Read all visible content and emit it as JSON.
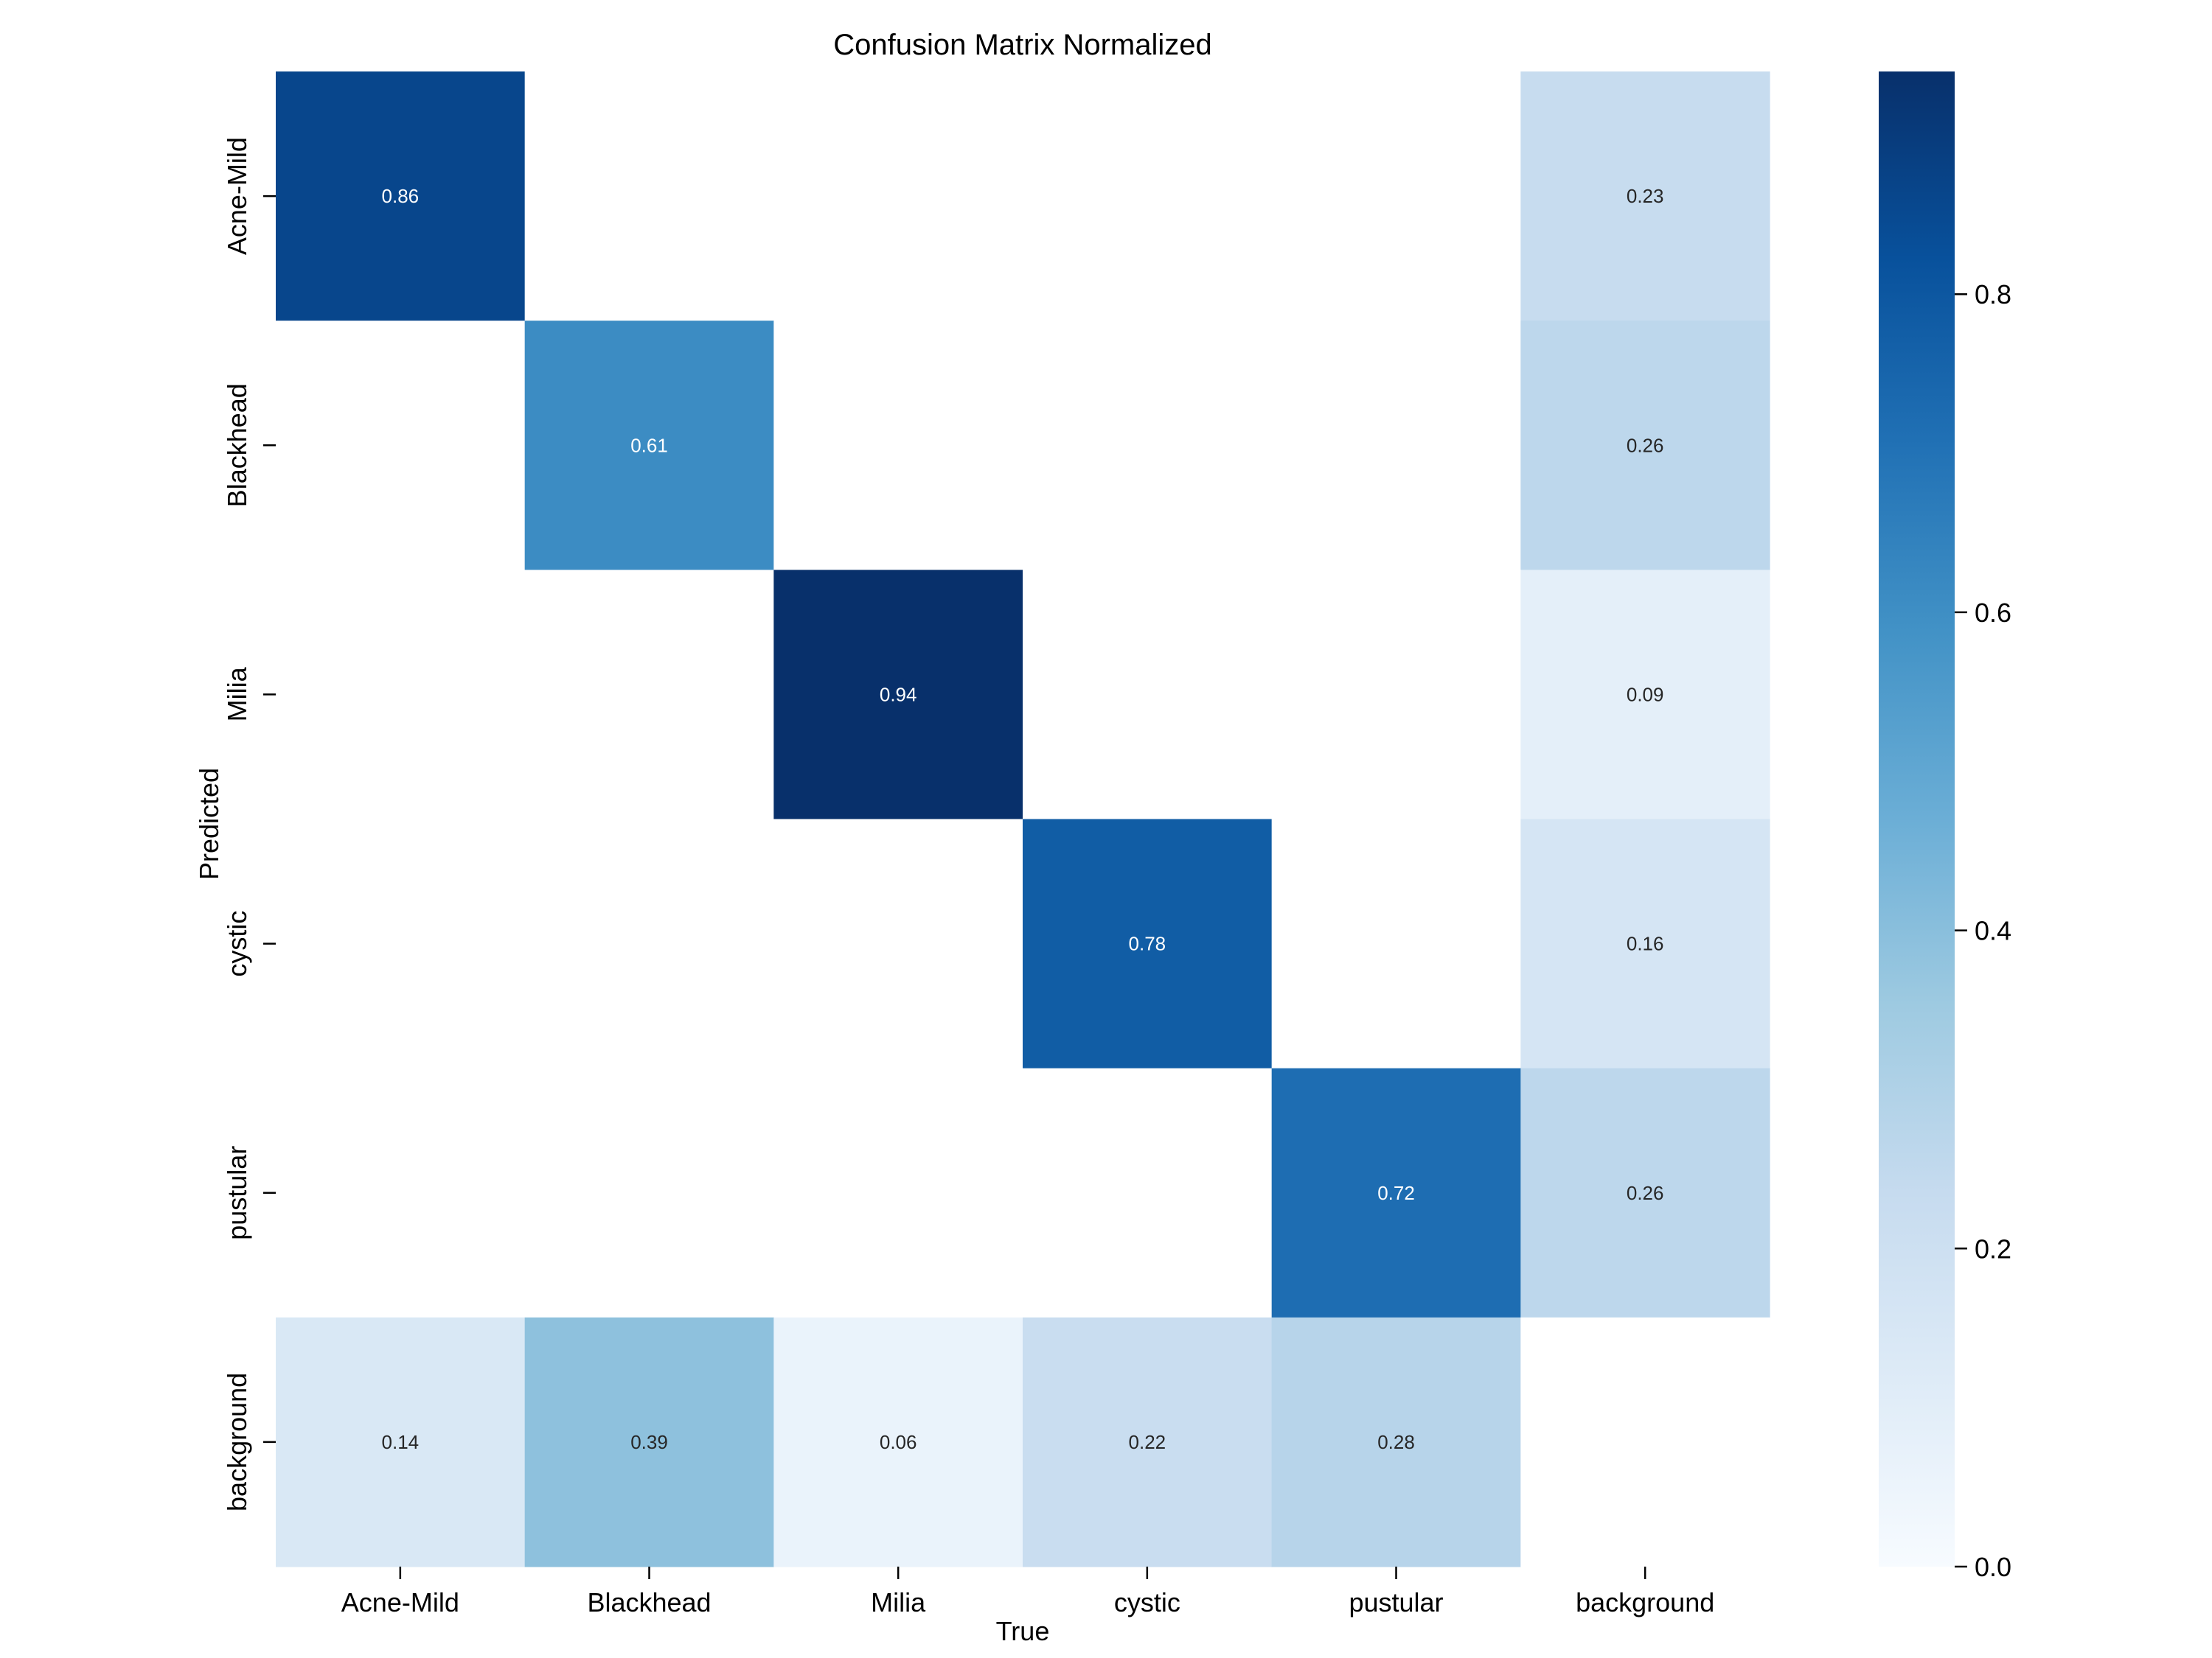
{
  "chart_data": {
    "type": "heatmap",
    "title": "Confusion Matrix Normalized",
    "xlabel": "True",
    "ylabel": "Predicted",
    "x_categories": [
      "Acne-Mild",
      "Blackhead",
      "Milia",
      "cystic",
      "pustular",
      "background"
    ],
    "y_categories": [
      "Acne-Mild",
      "Blackhead",
      "Milia",
      "cystic",
      "pustular",
      "background"
    ],
    "values": [
      [
        0.86,
        null,
        null,
        null,
        null,
        0.23
      ],
      [
        null,
        0.61,
        null,
        null,
        null,
        0.26
      ],
      [
        null,
        null,
        0.94,
        null,
        null,
        0.09
      ],
      [
        null,
        null,
        null,
        0.78,
        null,
        0.16
      ],
      [
        null,
        null,
        null,
        null,
        0.72,
        0.26
      ],
      [
        0.14,
        0.39,
        0.06,
        0.22,
        0.28,
        null
      ]
    ],
    "value_labels": [
      [
        "0.86",
        "",
        "",
        "",
        "",
        "0.23"
      ],
      [
        "",
        "0.61",
        "",
        "",
        "",
        "0.26"
      ],
      [
        "",
        "",
        "0.94",
        "",
        "",
        "0.09"
      ],
      [
        "",
        "",
        "",
        "0.78",
        "",
        "0.16"
      ],
      [
        "",
        "",
        "",
        "",
        "0.72",
        "0.26"
      ],
      [
        "0.14",
        "0.39",
        "0.06",
        "0.22",
        "0.28",
        ""
      ]
    ],
    "colorbar": {
      "colormap": "Blues",
      "vmin": 0.0,
      "vmax": 0.94,
      "ticks": [
        0.0,
        0.2,
        0.4,
        0.6,
        0.8
      ],
      "tick_labels": [
        "0.0",
        "0.2",
        "0.4",
        "0.6",
        "0.8"
      ]
    },
    "colors": {
      "background": "#ffffff",
      "empty_cell": "#ffffff",
      "text_dark": "#262626",
      "text_light": "#ffffff"
    }
  }
}
